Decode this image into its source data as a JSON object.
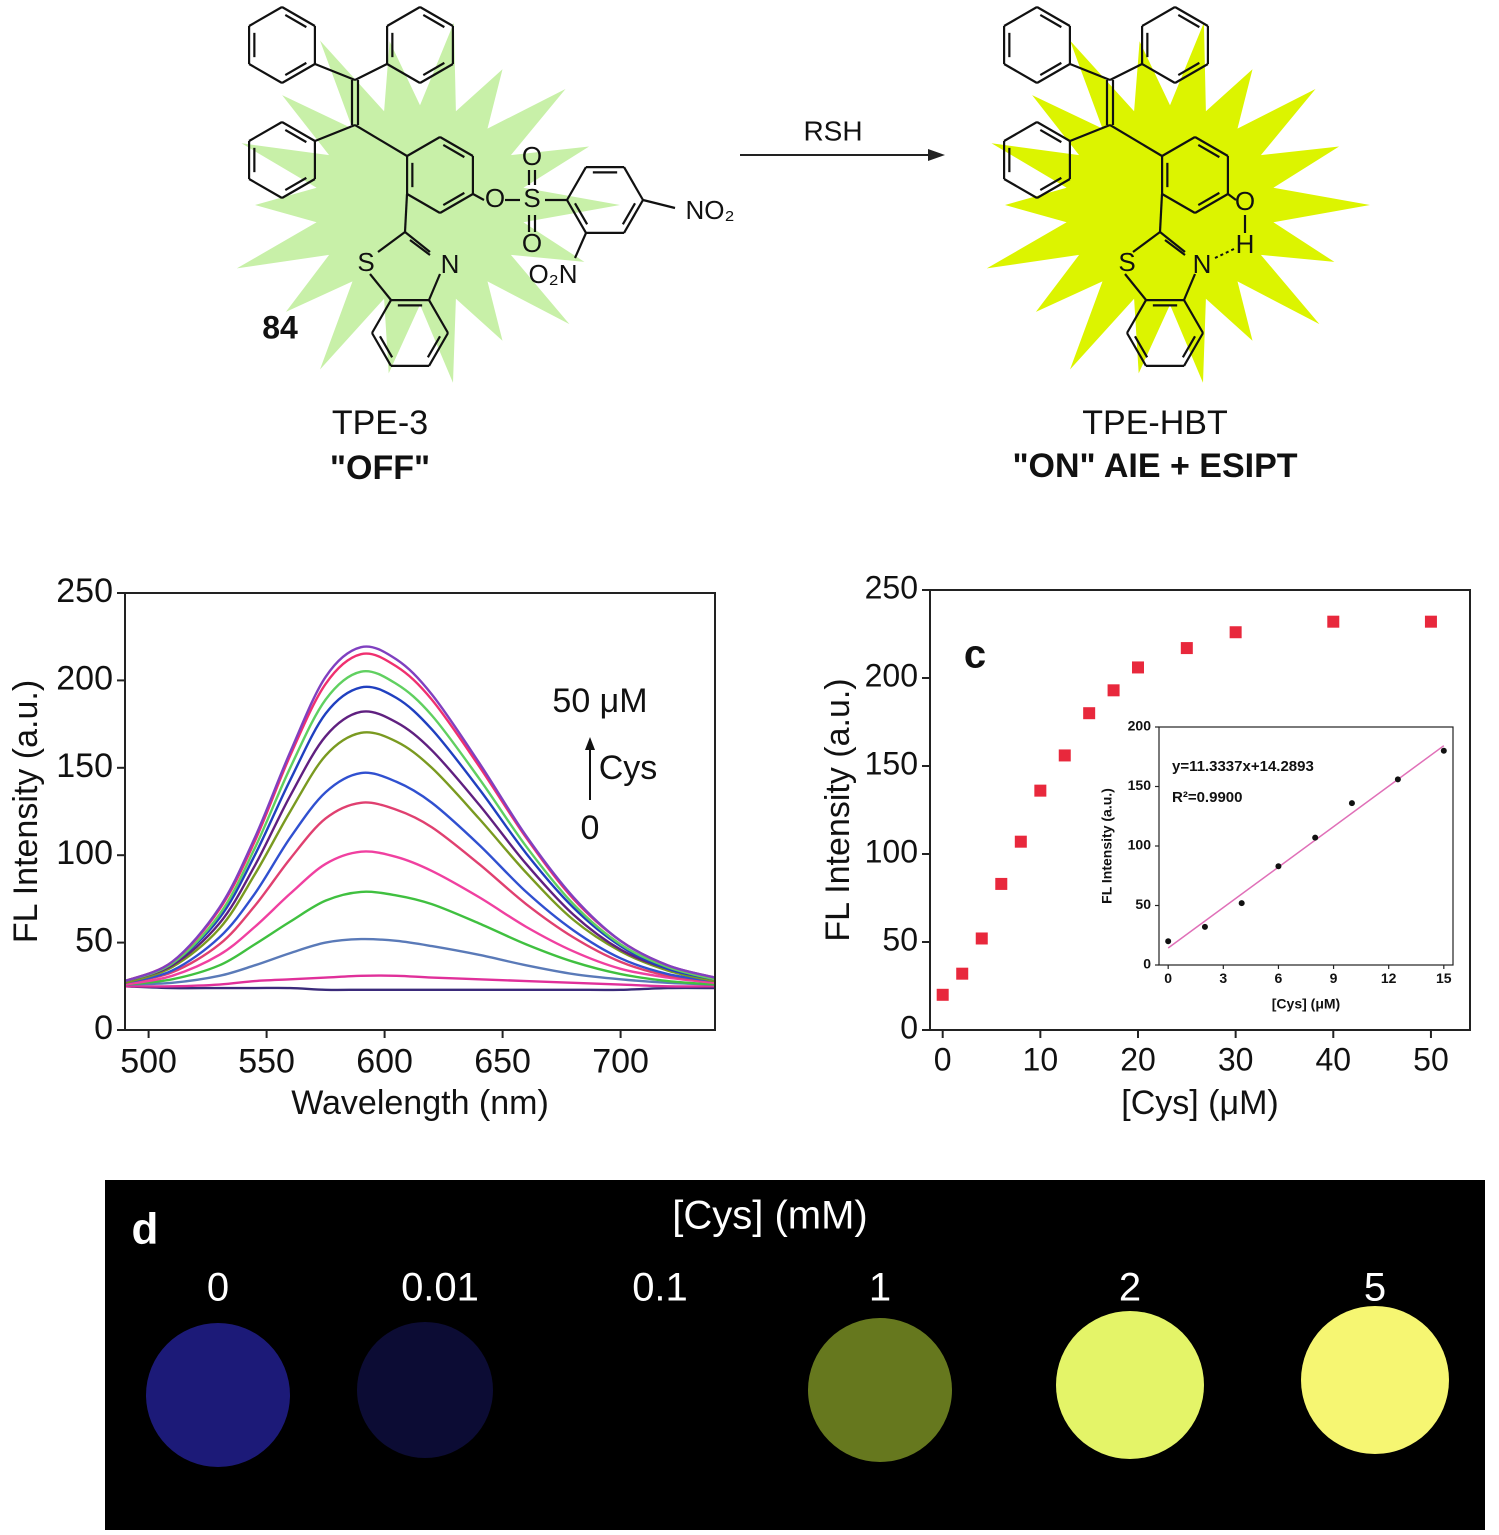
{
  "scheme": {
    "compound_number": "84",
    "reagent": "RSH",
    "reactant": {
      "name": "TPE-3",
      "state": "\"OFF\"",
      "glow_color": "#c8f0a8",
      "atoms": [
        "O",
        "S",
        "O",
        "O",
        "NO₂",
        "O₂N",
        "S",
        "N"
      ]
    },
    "product": {
      "name": "TPE-HBT",
      "state": "\"ON\" AIE + ESIPT",
      "glow_color": "#dcf400",
      "atoms": [
        "O",
        "H",
        "S",
        "N"
      ]
    }
  },
  "chart_data": [
    {
      "type": "line",
      "x_label": "Wavelength (nm)",
      "y_label": "FL Intensity (a.u.)",
      "xlim": [
        490,
        740
      ],
      "ylim": [
        0,
        250
      ],
      "xticks": [
        500,
        550,
        600,
        650,
        700
      ],
      "yticks": [
        0,
        50,
        100,
        150,
        200,
        250
      ],
      "annotations": [
        "50 μM",
        "Cys",
        "0"
      ],
      "x": [
        490,
        510,
        530,
        545,
        560,
        575,
        590,
        605,
        620,
        640,
        660,
        680,
        700,
        720,
        740
      ],
      "series": [
        {
          "color": "#3a2a7a",
          "values": [
            25,
            24,
            24,
            24,
            24,
            23,
            23,
            23,
            23,
            23,
            23,
            23,
            23,
            24,
            24
          ]
        },
        {
          "color": "#e0309a",
          "values": [
            25,
            25,
            26,
            28,
            29,
            30,
            31,
            31,
            30,
            29,
            28,
            27,
            26,
            25,
            25
          ]
        },
        {
          "color": "#5a7ab8",
          "values": [
            26,
            27,
            31,
            37,
            44,
            50,
            52,
            51,
            48,
            43,
            37,
            32,
            29,
            27,
            26
          ]
        },
        {
          "color": "#40c040",
          "values": [
            26,
            29,
            37,
            49,
            62,
            74,
            79,
            77,
            72,
            61,
            49,
            39,
            32,
            28,
            26
          ]
        },
        {
          "color": "#f040a0",
          "values": [
            26,
            31,
            43,
            59,
            78,
            95,
            102,
            99,
            91,
            76,
            59,
            45,
            35,
            30,
            27
          ]
        },
        {
          "color": "#e04070",
          "values": [
            27,
            33,
            49,
            71,
            98,
            121,
            130,
            126,
            116,
            95,
            72,
            53,
            39,
            31,
            28
          ]
        },
        {
          "color": "#3050d0",
          "values": [
            27,
            34,
            53,
            78,
            110,
            136,
            147,
            142,
            130,
            106,
            79,
            57,
            41,
            32,
            28
          ]
        },
        {
          "color": "#7a9a20",
          "values": [
            27,
            36,
            58,
            89,
            125,
            157,
            170,
            165,
            150,
            121,
            90,
            63,
            45,
            34,
            28
          ]
        },
        {
          "color": "#602080",
          "values": [
            28,
            37,
            61,
            94,
            134,
            168,
            182,
            176,
            160,
            129,
            95,
            66,
            46,
            35,
            29
          ]
        },
        {
          "color": "#2040c0",
          "values": [
            28,
            38,
            64,
            100,
            143,
            181,
            196,
            190,
            172,
            138,
            101,
            70,
            48,
            35,
            29
          ]
        },
        {
          "color": "#60d060",
          "values": [
            28,
            38,
            66,
            104,
            150,
            189,
            205,
            198,
            180,
            144,
            105,
            72,
            49,
            36,
            29
          ]
        },
        {
          "color": "#f03070",
          "values": [
            28,
            39,
            69,
            108,
            157,
            198,
            215,
            208,
            189,
            151,
            110,
            75,
            51,
            37,
            30
          ]
        },
        {
          "color": "#8040c0",
          "values": [
            28,
            39,
            70,
            110,
            159,
            202,
            219,
            212,
            192,
            153,
            111,
            76,
            51,
            37,
            30
          ]
        }
      ]
    },
    {
      "type": "scatter",
      "panel_label": "c",
      "x_label": "[Cys] (μM)",
      "y_label": "FL Intensity (a.u.)",
      "xlim": [
        -1.3,
        54
      ],
      "ylim": [
        0,
        250
      ],
      "xticks": [
        0,
        10,
        20,
        30,
        40,
        50
      ],
      "yticks": [
        0,
        50,
        100,
        150,
        200,
        250
      ],
      "marker": "square",
      "color": "#e8283c",
      "x": [
        0,
        2,
        4,
        6,
        8,
        10,
        12.5,
        15,
        17.5,
        20,
        25,
        30,
        40,
        50
      ],
      "values": [
        20,
        32,
        52,
        83,
        107,
        136,
        156,
        180,
        193,
        206,
        217,
        226,
        232,
        232
      ],
      "inset": {
        "type": "scatter",
        "x_label": "[Cys] (μM)",
        "y_label": "FL Intensity (a.u.)",
        "xlim": [
          -0.5,
          15.5
        ],
        "ylim": [
          0,
          200
        ],
        "xticks": [
          0,
          3,
          6,
          9,
          12,
          15
        ],
        "yticks": [
          0,
          50,
          100,
          150,
          200
        ],
        "marker": "circle",
        "color": "#111111",
        "x": [
          0,
          2,
          4,
          6,
          8,
          10,
          12.5,
          15
        ],
        "values": [
          20,
          32,
          52,
          83,
          107,
          136,
          156,
          180
        ],
        "fit": {
          "slope": 11.3337,
          "intercept": 14.2893,
          "color": "#e070b8"
        },
        "annotations": [
          "y=11.3337x+14.2893",
          "R²=0.9900"
        ]
      }
    }
  ],
  "photo": {
    "panel_label": "d",
    "title": "[Cys] (mM)",
    "samples": [
      {
        "label": "0",
        "color": "#1c1a78"
      },
      {
        "label": "0.01",
        "color": "#0c0c34"
      },
      {
        "label": "0.1",
        "color": "#000000"
      },
      {
        "label": "1",
        "color": "#66781e"
      },
      {
        "label": "2",
        "color": "#e4f468"
      },
      {
        "label": "5",
        "color": "#f6f672"
      }
    ]
  }
}
